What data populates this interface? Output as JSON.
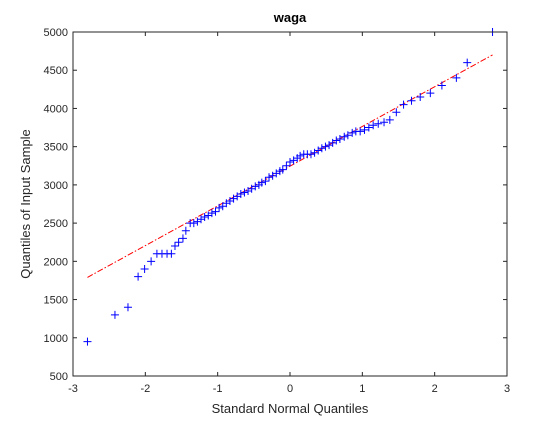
{
  "chart_data": {
    "type": "scatter",
    "title": "waga",
    "xlabel": "Standard Normal Quantiles",
    "ylabel": "Quantiles of Input Sample",
    "xlim": [
      -3,
      3
    ],
    "ylim": [
      500,
      5000
    ],
    "x_ticks": [
      "-3",
      "-2",
      "-1",
      "0",
      "1",
      "2",
      "3"
    ],
    "y_ticks": [
      "500",
      "1000",
      "1500",
      "2000",
      "2500",
      "3000",
      "3500",
      "4000",
      "4500",
      "5000"
    ],
    "grid": false,
    "colors": {
      "points": "#0000ff",
      "reference_line": "#ff0000"
    },
    "series": [
      {
        "marker": "+",
        "points": [
          [
            -2.8,
            950
          ],
          [
            -2.42,
            1300
          ],
          [
            -2.24,
            1400
          ],
          [
            -2.1,
            1800
          ],
          [
            -2.01,
            1900
          ],
          [
            -1.92,
            2000
          ],
          [
            -1.84,
            2100
          ],
          [
            -1.77,
            2100
          ],
          [
            -1.7,
            2100
          ],
          [
            -1.64,
            2100
          ],
          [
            -1.59,
            2200
          ],
          [
            -1.54,
            2250
          ],
          [
            -1.48,
            2300
          ],
          [
            -1.44,
            2400
          ],
          [
            -1.38,
            2500
          ],
          [
            -1.33,
            2500
          ],
          [
            -1.28,
            2520
          ],
          [
            -1.23,
            2550
          ],
          [
            -1.18,
            2580
          ],
          [
            -1.13,
            2600
          ],
          [
            -1.08,
            2630
          ],
          [
            -1.03,
            2650
          ],
          [
            -0.98,
            2700
          ],
          [
            -0.93,
            2720
          ],
          [
            -0.88,
            2760
          ],
          [
            -0.83,
            2790
          ],
          [
            -0.78,
            2820
          ],
          [
            -0.73,
            2850
          ],
          [
            -0.68,
            2880
          ],
          [
            -0.63,
            2900
          ],
          [
            -0.58,
            2920
          ],
          [
            -0.53,
            2950
          ],
          [
            -0.48,
            2980
          ],
          [
            -0.43,
            3000
          ],
          [
            -0.39,
            3030
          ],
          [
            -0.34,
            3050
          ],
          [
            -0.29,
            3100
          ],
          [
            -0.24,
            3120
          ],
          [
            -0.19,
            3150
          ],
          [
            -0.14,
            3180
          ],
          [
            -0.1,
            3200
          ],
          [
            -0.05,
            3250
          ],
          [
            0.0,
            3300
          ],
          [
            0.05,
            3320
          ],
          [
            0.1,
            3350
          ],
          [
            0.14,
            3380
          ],
          [
            0.19,
            3400
          ],
          [
            0.24,
            3400
          ],
          [
            0.29,
            3400
          ],
          [
            0.34,
            3420
          ],
          [
            0.39,
            3450
          ],
          [
            0.44,
            3480
          ],
          [
            0.49,
            3500
          ],
          [
            0.54,
            3520
          ],
          [
            0.59,
            3550
          ],
          [
            0.64,
            3580
          ],
          [
            0.69,
            3600
          ],
          [
            0.75,
            3630
          ],
          [
            0.8,
            3650
          ],
          [
            0.86,
            3680
          ],
          [
            0.91,
            3700
          ],
          [
            0.97,
            3700
          ],
          [
            1.03,
            3720
          ],
          [
            1.09,
            3750
          ],
          [
            1.15,
            3780
          ],
          [
            1.22,
            3800
          ],
          [
            1.3,
            3820
          ],
          [
            1.38,
            3850
          ],
          [
            1.47,
            3950
          ],
          [
            1.57,
            4050
          ],
          [
            1.68,
            4100
          ],
          [
            1.8,
            4150
          ],
          [
            1.94,
            4200
          ],
          [
            2.1,
            4300
          ],
          [
            2.3,
            4400
          ],
          [
            2.45,
            4600
          ],
          [
            2.8,
            5000
          ]
        ]
      }
    ],
    "reference_line": {
      "x": [
        -2.8,
        2.8
      ],
      "y": [
        1790,
        4700
      ],
      "style": "dash-dot"
    }
  }
}
